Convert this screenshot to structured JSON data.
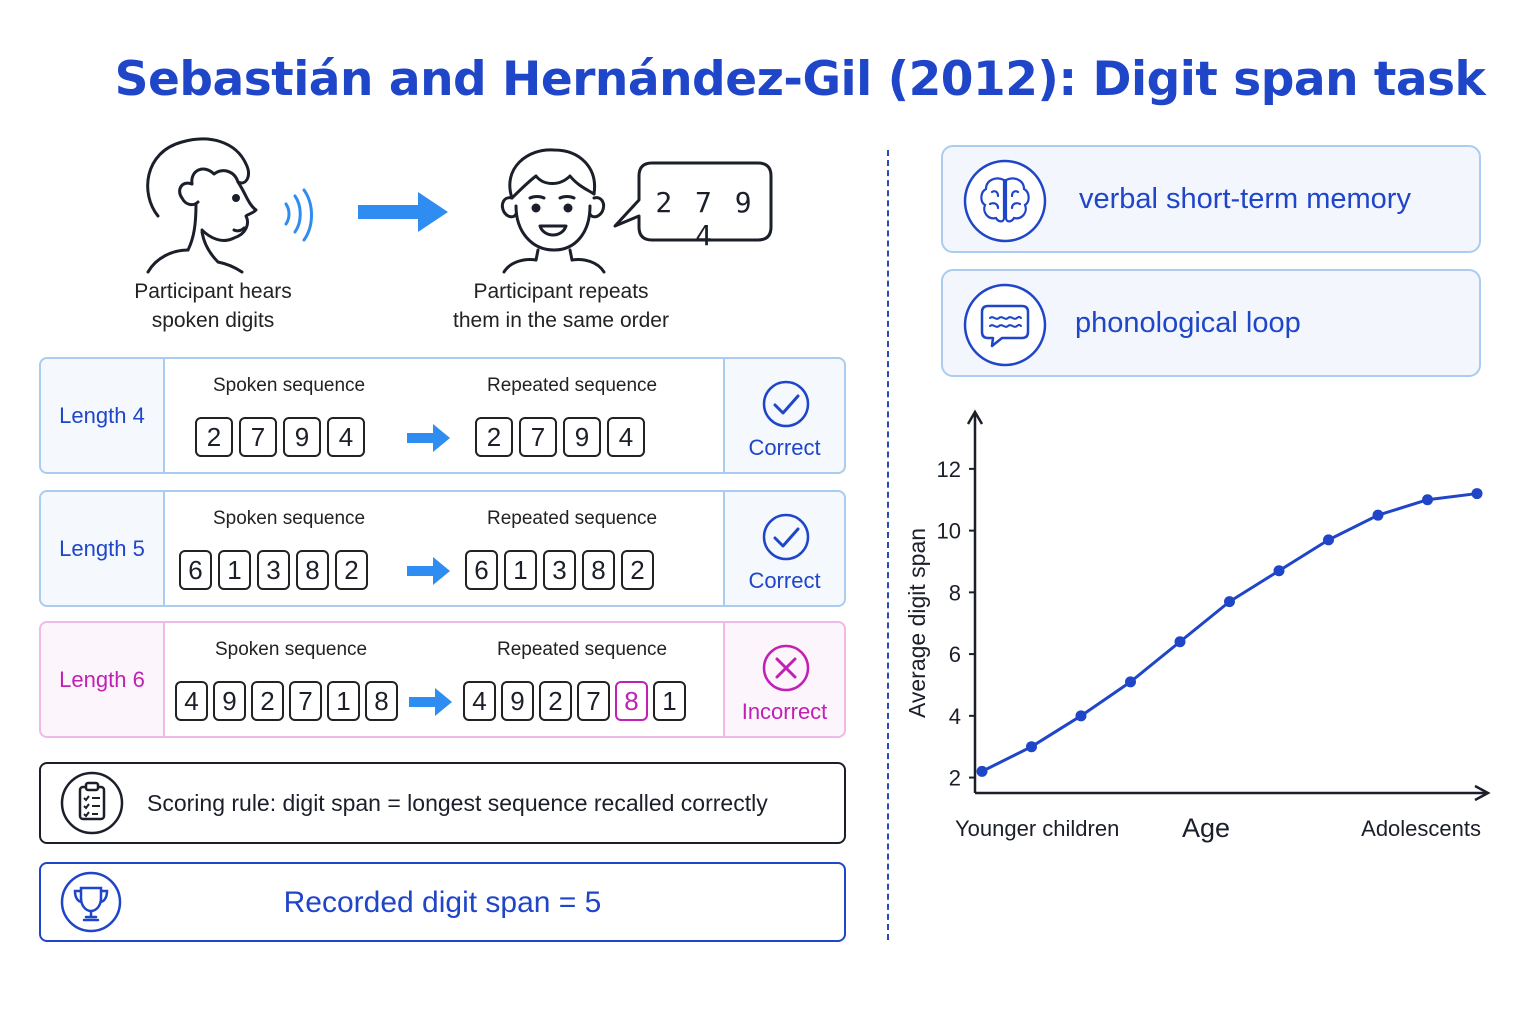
{
  "title": "Sebastián and Hernández-Gil (2012): Digit span task",
  "illustration": {
    "hear_caption_line1": "Participant hears",
    "hear_caption_line2": "spoken digits",
    "repeat_caption_line1": "Participant repeats",
    "repeat_caption_line2": "them in the same order",
    "bubble_digits": "2 7 9 4"
  },
  "trials": [
    {
      "length_label": "Length 4",
      "spoken_label": "Spoken sequence",
      "repeated_label": "Repeated sequence",
      "spoken": [
        "2",
        "7",
        "9",
        "4"
      ],
      "repeated": [
        "2",
        "7",
        "9",
        "4"
      ],
      "result": "Correct"
    },
    {
      "length_label": "Length 5",
      "spoken_label": "Spoken sequence",
      "repeated_label": "Repeated sequence",
      "spoken": [
        "6",
        "1",
        "3",
        "8",
        "2"
      ],
      "repeated": [
        "6",
        "1",
        "3",
        "8",
        "2"
      ],
      "result": "Correct"
    },
    {
      "length_label": "Length 6",
      "spoken_label": "Spoken sequence",
      "repeated_label": "Repeated sequence",
      "spoken": [
        "4",
        "9",
        "2",
        "7",
        "1",
        "8"
      ],
      "repeated": [
        "4",
        "9",
        "2",
        "7",
        "8",
        "1"
      ],
      "result": "Incorrect"
    }
  ],
  "scoring_rule": "Scoring rule: digit span = longest sequence recalled correctly",
  "recorded_span": "Recorded digit span  =  5",
  "concepts": {
    "memory": "verbal short-term memory",
    "loop": "phonological loop"
  },
  "colors": {
    "accent": "#1f45c8",
    "arrow": "#2f8cf0",
    "error": "#c021b5",
    "card_border": "#a9ccef"
  },
  "icons": [
    "listening-boy-icon",
    "speaking-boy-icon",
    "check-circle-icon",
    "x-circle-icon",
    "clipboard-icon",
    "trophy-icon",
    "brain-icon",
    "speech-bubble-icon"
  ],
  "chart_data": {
    "type": "line",
    "title": "",
    "xlabel": "Age",
    "ylabel": "Average digit span",
    "x_tick_labels": [
      "Younger children",
      "Adolescents"
    ],
    "y_ticks": [
      2,
      4,
      6,
      8,
      10,
      12
    ],
    "ylim": [
      1.5,
      13
    ],
    "x": [
      1,
      2,
      3,
      4,
      5,
      6,
      7,
      8,
      9,
      10,
      11
    ],
    "y": [
      2.2,
      3.0,
      4.0,
      5.1,
      6.4,
      7.7,
      8.7,
      9.7,
      10.5,
      11.0,
      11.2
    ],
    "grid": false
  }
}
